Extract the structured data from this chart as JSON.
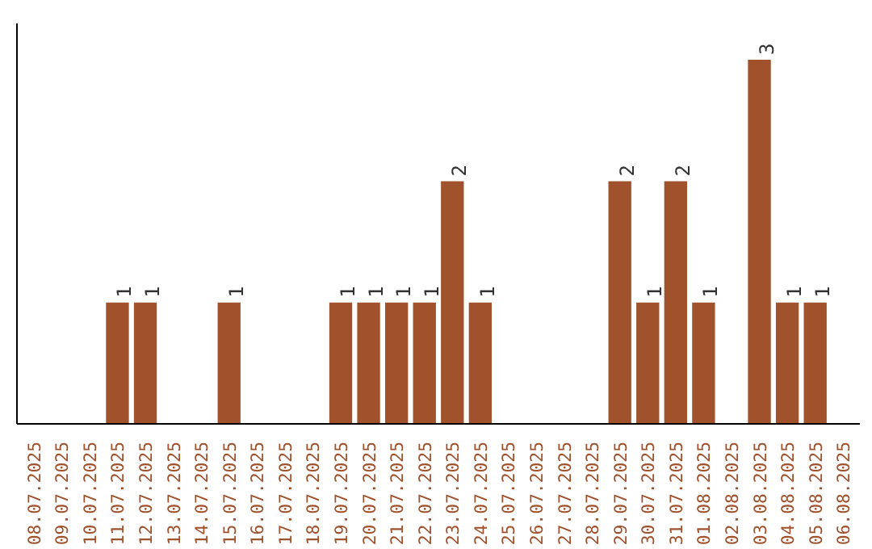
{
  "chart_data": {
    "type": "bar",
    "categories": [
      "08.07.2025",
      "09.07.2025",
      "10.07.2025",
      "11.07.2025",
      "12.07.2025",
      "13.07.2025",
      "14.07.2025",
      "15.07.2025",
      "16.07.2025",
      "17.07.2025",
      "18.07.2025",
      "19.07.2025",
      "20.07.2025",
      "21.07.2025",
      "22.07.2025",
      "23.07.2025",
      "24.07.2025",
      "25.07.2025",
      "26.07.2025",
      "27.07.2025",
      "28.07.2025",
      "29.07.2025",
      "30.07.2025",
      "31.07.2025",
      "01.08.2025",
      "02.08.2025",
      "03.08.2025",
      "04.08.2025",
      "05.08.2025",
      "06.08.2025"
    ],
    "values": [
      0,
      0,
      0,
      1,
      1,
      0,
      0,
      1,
      0,
      0,
      0,
      1,
      1,
      1,
      1,
      2,
      1,
      0,
      0,
      0,
      0,
      2,
      1,
      2,
      1,
      0,
      3,
      1,
      1,
      0
    ],
    "color": "#a0522d",
    "value_labels": [
      null,
      null,
      null,
      "1",
      "1",
      null,
      null,
      "1",
      null,
      null,
      null,
      "1",
      "1",
      "1",
      "1",
      "2",
      "1",
      null,
      null,
      null,
      null,
      "2",
      "1",
      "2",
      "1",
      null,
      "3",
      "1",
      "1",
      null
    ],
    "ylim": [
      0,
      3.3
    ],
    "grid": false
  }
}
